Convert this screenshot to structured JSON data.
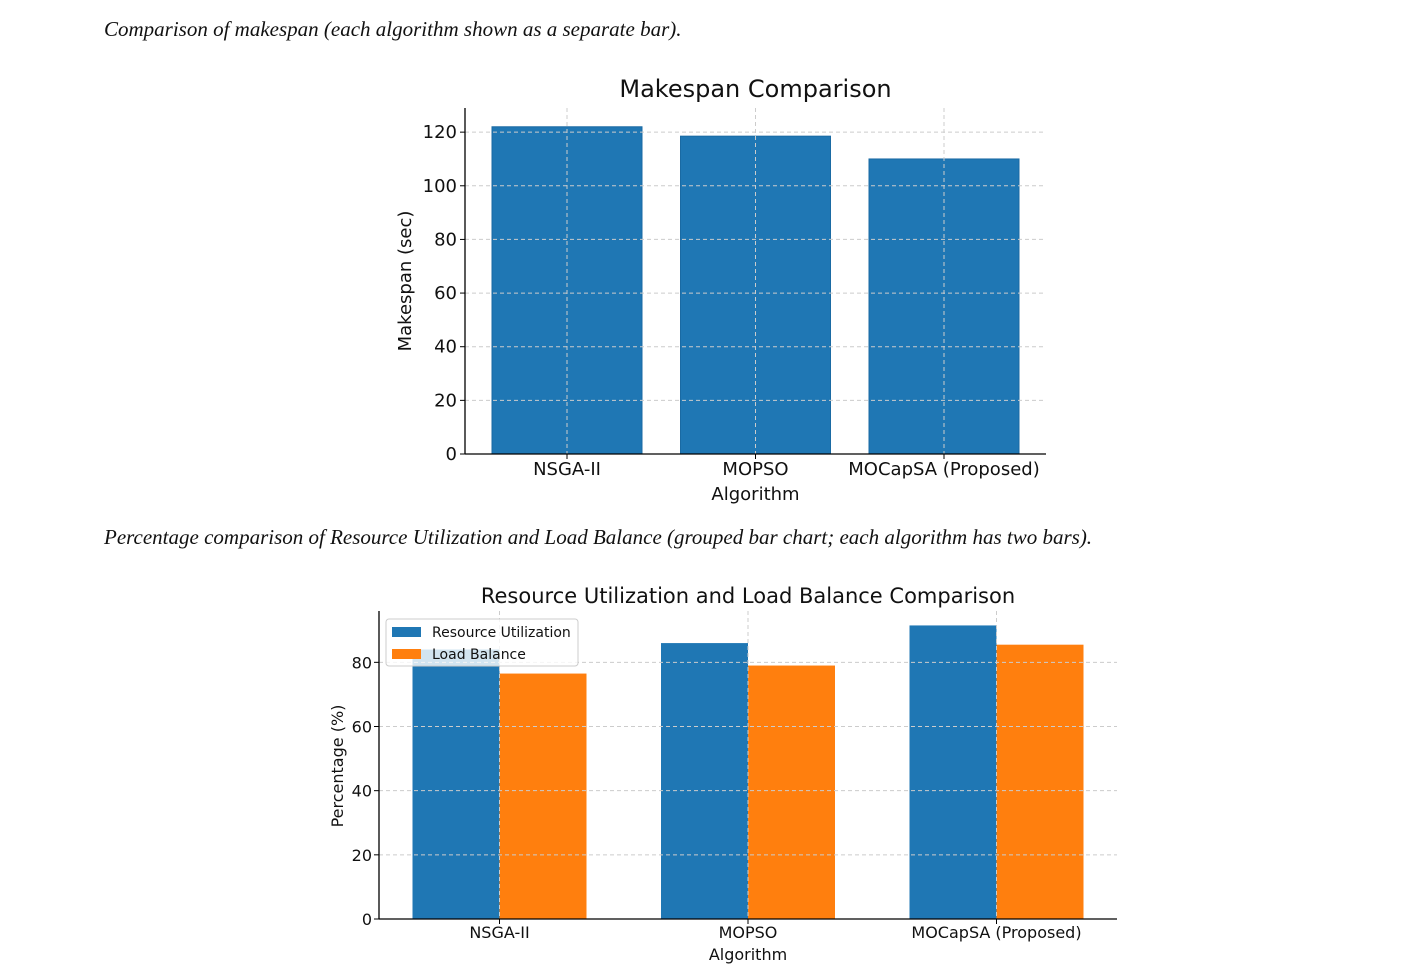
{
  "captions": {
    "makespan": "Comparison of makespan (each algorithm shown as a separate bar).",
    "utilization": "Percentage comparison of Resource Utilization and Load Balance (grouped bar chart; each algorithm has two bars)."
  },
  "colors": {
    "blue": "#1f77b4",
    "orange": "#ff7f0e",
    "grid": "#cccccc"
  },
  "chart_data": [
    {
      "type": "bar",
      "title": "Makespan Comparison",
      "xlabel": "Algorithm",
      "ylabel": "Makespan (sec)",
      "categories": [
        "NSGA-II",
        "MOPSO",
        "MOCapSA (Proposed)"
      ],
      "values": [
        122,
        118.5,
        110
      ],
      "ylim": [
        0,
        129
      ],
      "yticks": [
        0,
        20,
        40,
        60,
        80,
        100,
        120
      ],
      "grid": true
    },
    {
      "type": "bar",
      "title": "Resource Utilization and Load Balance Comparison",
      "xlabel": "Algorithm",
      "ylabel": "Percentage (%)",
      "categories": [
        "NSGA-II",
        "MOPSO",
        "MOCapSA (Proposed)"
      ],
      "series": [
        {
          "name": "Resource Utilization",
          "values": [
            84,
            86,
            91.5
          ]
        },
        {
          "name": "Load Balance",
          "values": [
            76.5,
            79,
            85.5
          ]
        }
      ],
      "ylim": [
        0,
        96
      ],
      "yticks": [
        0,
        20,
        40,
        60,
        80
      ],
      "legend": "top-left",
      "grid": true
    }
  ]
}
